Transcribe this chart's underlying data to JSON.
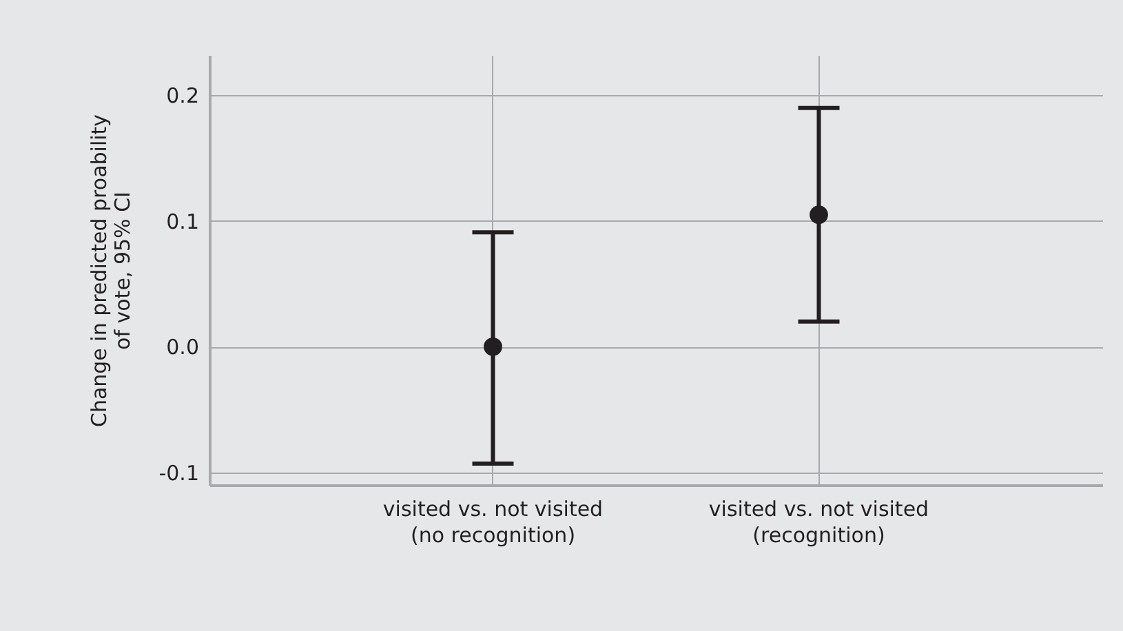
{
  "chart_data": {
    "type": "scatter",
    "ylabel": "Change in predicted proability\nof vote, 95% CI",
    "categories": [
      "visited vs. not visited\n(no recognition)",
      "visited vs. not visited\n(recognition)"
    ],
    "series": [
      {
        "color": "#231f20",
        "values": [
          0.0,
          0.105
        ],
        "errors": [
          [
            -0.093,
            0.091
          ],
          [
            0.02,
            0.19
          ]
        ]
      }
    ],
    "ylim": [
      -0.11,
      0.232
    ],
    "yticks": [
      {
        "value": -0.1,
        "label": "-0.1"
      },
      {
        "value": 0.0,
        "label": "0.0"
      },
      {
        "value": 0.1,
        "label": "0.1"
      },
      {
        "value": 0.2,
        "label": "0.2"
      }
    ],
    "grid": true,
    "marker": "circle"
  }
}
